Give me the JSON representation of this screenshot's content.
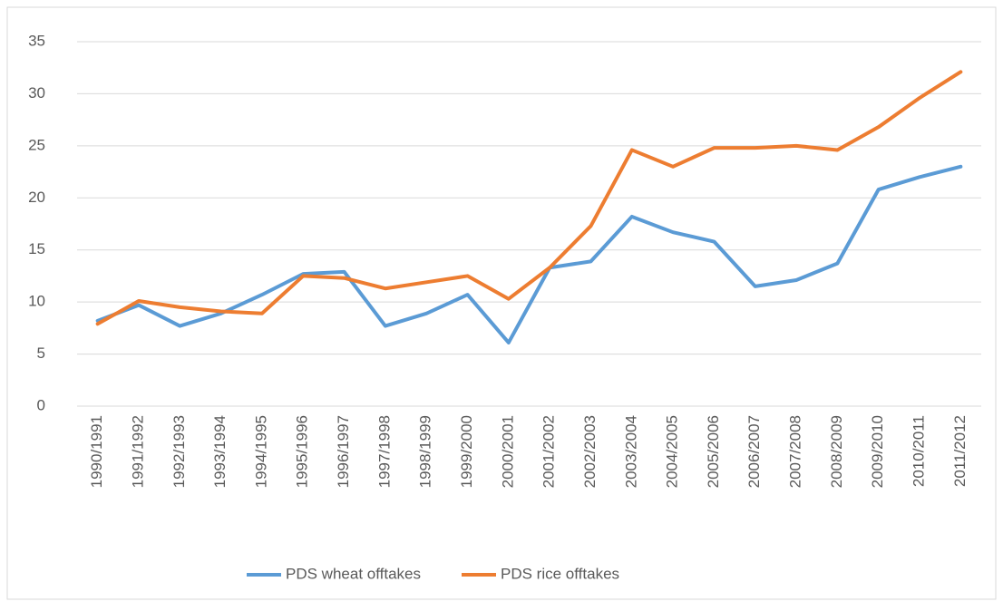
{
  "chart_data": {
    "type": "line",
    "categories": [
      "1990/1991",
      "1991/1992",
      "1992/1993",
      "1993/1994",
      "1994/1995",
      "1995/1996",
      "1996/1997",
      "1997/1998",
      "1998/1999",
      "1999/2000",
      "2000/2001",
      "2001/2002",
      "2002/2003",
      "2003/2004",
      "2004/2005",
      "2005/2006",
      "2006/2007",
      "2007/2008",
      "2008/2009",
      "2009/2010",
      "2010/2011",
      "2011/2012"
    ],
    "series": [
      {
        "name": "PDS wheat offtakes",
        "color": "#5b9bd5",
        "values": [
          8.2,
          9.7,
          7.7,
          8.9,
          10.7,
          12.7,
          12.9,
          7.7,
          8.9,
          10.7,
          6.1,
          13.3,
          13.9,
          18.2,
          16.7,
          15.8,
          11.5,
          12.1,
          13.7,
          20.8,
          22.0,
          23.0
        ]
      },
      {
        "name": "PDS rice offtakes",
        "color": "#ed7d31",
        "values": [
          7.9,
          10.1,
          9.5,
          9.1,
          8.9,
          12.5,
          12.3,
          11.3,
          11.9,
          12.5,
          10.3,
          13.3,
          17.3,
          24.6,
          23.0,
          24.8,
          24.8,
          25.0,
          24.6,
          26.8,
          29.6,
          32.1
        ]
      }
    ],
    "ylim": [
      0,
      35
    ],
    "yticks": [
      0,
      5,
      10,
      15,
      20,
      25,
      30,
      35
    ],
    "grid": true,
    "legend": "bottom"
  }
}
